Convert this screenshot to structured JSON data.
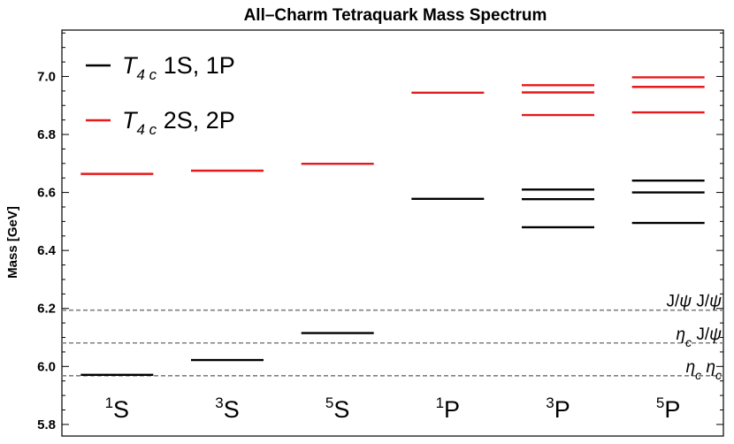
{
  "chart_data": {
    "type": "spectrum",
    "title": "All–Charm Tetraquark Mass Spectrum",
    "ylabel": "Mass [GeV]",
    "ylim": [
      5.76,
      7.16
    ],
    "yticks": [
      5.8,
      6.0,
      6.2,
      6.4,
      6.6,
      6.8,
      7.0
    ],
    "ytick_labels": [
      "5.8",
      "6.0",
      "6.2",
      "6.4",
      "6.6",
      "6.8",
      "7.0"
    ],
    "categories": [
      {
        "sup": "1",
        "base": "S"
      },
      {
        "sup": "3",
        "base": "S"
      },
      {
        "sup": "5",
        "base": "S"
      },
      {
        "sup": "1",
        "base": "P"
      },
      {
        "sup": "3",
        "base": "P"
      },
      {
        "sup": "5",
        "base": "P"
      }
    ],
    "series": [
      {
        "legend_base": "T",
        "legend_sub": "4 c",
        "legend_rest": " 1S, 1P",
        "color": "#000000",
        "levels": [
          [
            5.971
          ],
          [
            6.022
          ],
          [
            6.115
          ],
          [
            6.578
          ],
          [
            6.48,
            6.577,
            6.61
          ],
          [
            6.495,
            6.6,
            6.641
          ]
        ]
      },
      {
        "legend_base": "T",
        "legend_sub": "4 c",
        "legend_rest": " 2S, 2P",
        "color": "#e41a1c",
        "levels": [
          [
            6.664
          ],
          [
            6.675
          ],
          [
            6.699
          ],
          [
            6.944
          ],
          [
            6.867,
            6.945,
            6.97
          ],
          [
            6.876,
            6.964,
            6.997
          ]
        ]
      }
    ],
    "thresholds": [
      {
        "value": 6.194,
        "label_parts": [
          {
            "t": "J/",
            "i": false
          },
          {
            "t": "ψ",
            "i": true
          },
          {
            "t": " J/",
            "i": false
          },
          {
            "t": "ψ",
            "i": true
          }
        ]
      },
      {
        "value": 6.081,
        "label_parts": [
          {
            "t": "η",
            "i": true
          },
          {
            "t": "c",
            "i": true,
            "sub": true
          },
          {
            "t": " J/",
            "i": false
          },
          {
            "t": "ψ",
            "i": true
          }
        ]
      },
      {
        "value": 5.968,
        "label_parts": [
          {
            "t": "η",
            "i": true
          },
          {
            "t": "c",
            "i": true,
            "sub": true
          },
          {
            "t": " ",
            "i": false
          },
          {
            "t": "η",
            "i": true
          },
          {
            "t": "c",
            "i": true,
            "sub": true
          }
        ]
      }
    ],
    "threshold_color": "#808080",
    "legend_position": "top-left",
    "grid": false
  }
}
